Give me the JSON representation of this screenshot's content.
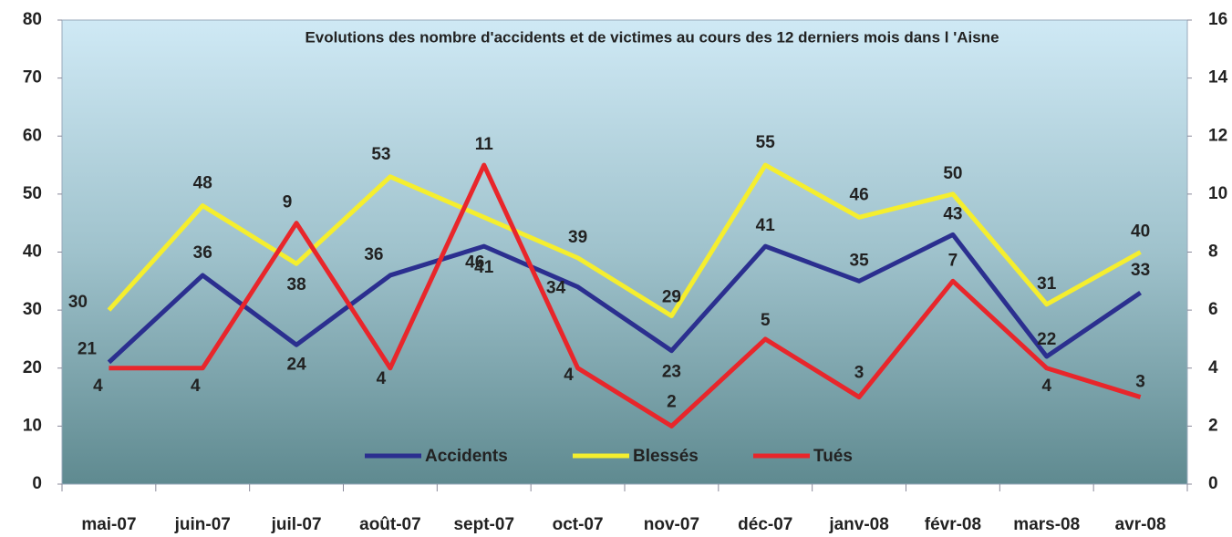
{
  "chart_data": {
    "type": "line",
    "title": "Evolutions des nombre d'accidents et de victimes au cours des 12 derniers mois dans l 'Aisne",
    "categories": [
      "mai-07",
      "juin-07",
      "juil-07",
      "août-07",
      "sept-07",
      "oct-07",
      "nov-07",
      "déc-07",
      "janv-08",
      "févr-08",
      "mars-08",
      "avr-08"
    ],
    "series": [
      {
        "name": "Accidents",
        "color": "#2b2f8f",
        "values": [
          21,
          36,
          24,
          36,
          41,
          34,
          23,
          41,
          35,
          43,
          22,
          33
        ]
      },
      {
        "name": "Blessés",
        "color": "#f5ee2e",
        "values": [
          30,
          48,
          38,
          53,
          46,
          39,
          29,
          55,
          46,
          50,
          31,
          40
        ]
      },
      {
        "name": "Tués",
        "color": "#e8262b",
        "values": [
          4,
          4,
          9,
          4,
          11,
          4,
          2,
          5,
          3,
          7,
          4,
          3
        ],
        "axis": "y2"
      }
    ],
    "ylim": [
      0,
      80
    ],
    "yticks": [
      0,
      10,
      20,
      30,
      40,
      50,
      60,
      70,
      80
    ],
    "y2lim": [
      0,
      16
    ],
    "y2ticks": [
      0,
      2,
      4,
      6,
      8,
      10,
      12,
      14,
      16
    ],
    "legend": "bottom"
  }
}
